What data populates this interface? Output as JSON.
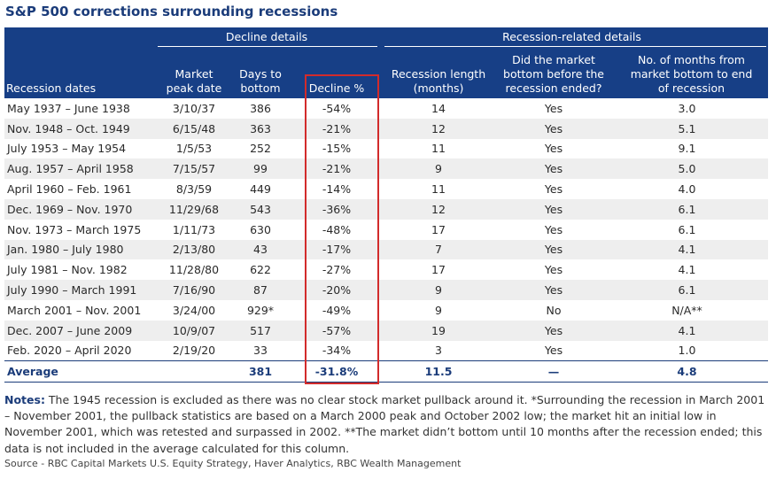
{
  "title": "S&P 500 corrections surrounding recessions",
  "groups": {
    "decline": "Decline details",
    "recession": "Recession-related details"
  },
  "headers": [
    "Recession dates",
    "Market\npeak date",
    "Days to\nbottom",
    "Decline %",
    "Recession length\n(months)",
    "Did the market\nbottom before the\nrecession ended?",
    "No. of months from\nmarket bottom to end\nof  recession"
  ],
  "rows": [
    [
      "May 1937 – June 1938",
      "3/10/37",
      "386",
      "-54%",
      "14",
      "Yes",
      "3.0"
    ],
    [
      "Nov. 1948 – Oct. 1949",
      "6/15/48",
      "363",
      "-21%",
      "12",
      "Yes",
      "5.1"
    ],
    [
      "July 1953 – May 1954",
      "1/5/53",
      "252",
      "-15%",
      "11",
      "Yes",
      "9.1"
    ],
    [
      "Aug. 1957 – April 1958",
      "7/15/57",
      "99",
      "-21%",
      "9",
      "Yes",
      "5.0"
    ],
    [
      "April 1960 – Feb. 1961",
      "8/3/59",
      "449",
      "-14%",
      "11",
      "Yes",
      "4.0"
    ],
    [
      "Dec. 1969 – Nov. 1970",
      "11/29/68",
      "543",
      "-36%",
      "12",
      "Yes",
      "6.1"
    ],
    [
      "Nov. 1973 – March 1975",
      "1/11/73",
      "630",
      "-48%",
      "17",
      "Yes",
      "6.1"
    ],
    [
      "Jan. 1980 – July 1980",
      "2/13/80",
      "43",
      "-17%",
      "7",
      "Yes",
      "4.1"
    ],
    [
      "July 1981 – Nov. 1982",
      "11/28/80",
      "622",
      "-27%",
      "17",
      "Yes",
      "4.1"
    ],
    [
      "July 1990 – March 1991",
      "7/16/90",
      "87",
      "-20%",
      "9",
      "Yes",
      "6.1"
    ],
    [
      "March 2001 – Nov. 2001",
      "3/24/00",
      "929*",
      "-49%",
      "9",
      "No",
      "N/A**"
    ],
    [
      "Dec. 2007 – June 2009",
      "10/9/07",
      "517",
      "-57%",
      "19",
      "Yes",
      "4.1"
    ],
    [
      "Feb. 2020 – April 2020",
      "2/19/20",
      "33",
      "-34%",
      "3",
      "Yes",
      "1.0"
    ]
  ],
  "average": [
    "Average",
    "",
    "381",
    "-31.8%",
    "11.5",
    "—",
    "4.8"
  ],
  "notes_label": "Notes:",
  "notes_text": " The 1945 recession is excluded as there was no clear stock market pullback around it.  *Surrounding the recession in March 2001 – November 2001, the pullback statistics are based on a March 2000 peak and October 2002 low; the market hit an initial low in November 2001, which was retested and surpassed in 2002.  **The market didn’t bottom until 10 months after the recession ended; this data is not included in the average calculated for this column.",
  "source": "Source - RBC Capital Markets U.S. Equity Strategy, Haver Analytics, RBC Wealth Management",
  "colors": {
    "header_bg": "#173f86",
    "accent_text": "#1b3c7a",
    "highlight_border": "#d22b2b",
    "alt_row": "#eeeeee"
  }
}
